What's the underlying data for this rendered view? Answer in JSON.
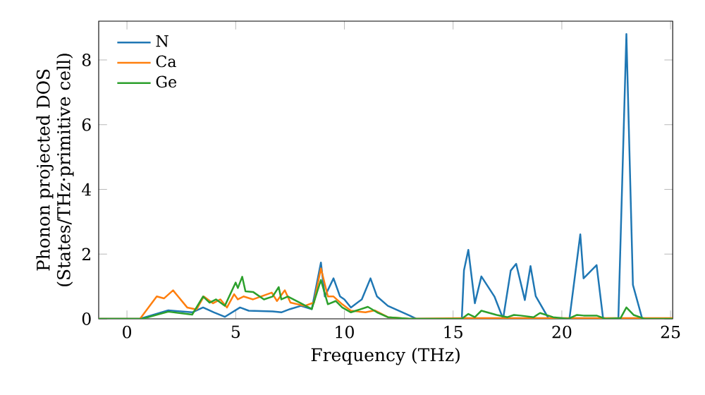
{
  "chart_data": {
    "type": "line",
    "xlabel": "Frequency (THz)",
    "ylabel": "Phonon projected DOS\n(States/THz·primitive cell)",
    "xlim": [
      -1.3,
      25.1
    ],
    "ylim": [
      0,
      9.2
    ],
    "xticks": [
      0,
      5,
      10,
      15,
      20,
      25
    ],
    "yticks": [
      0,
      2,
      4,
      6,
      8
    ],
    "legend": "top left",
    "grid": false,
    "series": [
      {
        "name": "N",
        "color": "#1f77b4",
        "x": [
          -1.3,
          0.6,
          1.9,
          3.0,
          3.5,
          4.0,
          4.5,
          5.2,
          5.6,
          6.7,
          7.1,
          7.5,
          8.0,
          8.5,
          8.92,
          9.1,
          9.5,
          9.8,
          10.0,
          10.3,
          10.8,
          11.2,
          11.5,
          12.0,
          13.0,
          13.3,
          15.4,
          15.5,
          15.7,
          16.0,
          16.3,
          16.9,
          17.3,
          17.65,
          17.9,
          18.3,
          18.56,
          18.8,
          19.4,
          20.35,
          20.85,
          21.0,
          21.6,
          21.9,
          22.6,
          22.97,
          23.27,
          23.7,
          25.1
        ],
        "values": [
          0,
          0,
          0.26,
          0.2,
          0.35,
          0.2,
          0.06,
          0.35,
          0.25,
          0.23,
          0.2,
          0.3,
          0.4,
          0.3,
          1.74,
          0.69,
          1.25,
          0.69,
          0.6,
          0.35,
          0.6,
          1.25,
          0.69,
          0.4,
          0.1,
          0,
          0,
          1.5,
          2.13,
          0.48,
          1.31,
          0.69,
          0,
          1.49,
          1.7,
          0.58,
          1.63,
          0.7,
          0,
          0,
          2.61,
          1.25,
          1.66,
          0,
          0,
          8.8,
          1.05,
          0,
          0
        ]
      },
      {
        "name": "Ca",
        "color": "#ff7f0e",
        "x": [
          -1.3,
          0.6,
          1.37,
          1.7,
          2.12,
          2.77,
          3.2,
          3.53,
          3.96,
          4.3,
          4.6,
          4.93,
          5.1,
          5.36,
          5.8,
          6.66,
          6.9,
          7.26,
          7.52,
          8.17,
          8.6,
          8.92,
          9.24,
          9.5,
          9.9,
          10.3,
          10.97,
          11.4,
          12.0,
          13.0,
          15.5,
          25.1
        ],
        "values": [
          0,
          0,
          0.69,
          0.63,
          0.88,
          0.35,
          0.29,
          0.69,
          0.48,
          0.6,
          0.35,
          0.76,
          0.6,
          0.69,
          0.6,
          0.81,
          0.55,
          0.88,
          0.5,
          0.4,
          0.5,
          1.56,
          0.69,
          0.69,
          0.45,
          0.25,
          0.2,
          0.26,
          0.05,
          0,
          0.02,
          0.02
        ]
      },
      {
        "name": "Ge",
        "color": "#2ca02c",
        "x": [
          -1.3,
          0.7,
          1.9,
          3.0,
          3.5,
          3.8,
          4.1,
          4.5,
          5.0,
          5.1,
          5.3,
          5.45,
          5.8,
          6.3,
          6.7,
          6.98,
          7.1,
          7.4,
          7.95,
          8.5,
          8.92,
          9.24,
          9.6,
          9.9,
          10.3,
          11.08,
          11.5,
          12.0,
          13.0,
          15.4,
          15.7,
          16.0,
          16.3,
          17.0,
          17.5,
          17.8,
          18.1,
          18.7,
          19.0,
          19.6,
          20.3,
          20.7,
          21.0,
          21.6,
          22.0,
          22.7,
          22.97,
          23.3,
          23.8,
          25.1
        ],
        "values": [
          0,
          0,
          0.22,
          0.13,
          0.69,
          0.5,
          0.6,
          0.4,
          1.12,
          0.95,
          1.3,
          0.85,
          0.83,
          0.6,
          0.69,
          0.98,
          0.6,
          0.69,
          0.5,
          0.3,
          1.2,
          0.45,
          0.55,
          0.35,
          0.2,
          0.37,
          0.2,
          0.05,
          0,
          0,
          0.15,
          0.05,
          0.25,
          0.12,
          0.05,
          0.12,
          0.1,
          0.05,
          0.18,
          0.05,
          0,
          0.12,
          0.1,
          0.1,
          0,
          0.02,
          0.35,
          0.12,
          0,
          0
        ]
      }
    ]
  }
}
